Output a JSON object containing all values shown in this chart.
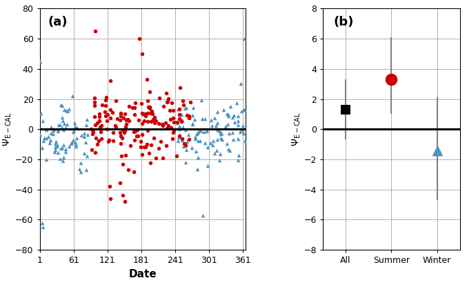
{
  "panel_a": {
    "title": "(a)",
    "xlabel": "Date",
    "ylim": [
      -80,
      80
    ],
    "yticks": [
      -80,
      -60,
      -40,
      -20,
      0,
      20,
      40,
      60,
      80
    ],
    "xlim": [
      1,
      366
    ],
    "xticks": [
      1,
      61,
      121,
      181,
      241,
      301,
      361
    ],
    "hline": 0,
    "red_seed": 10,
    "blue_seed": 7
  },
  "panel_b": {
    "title": "(b)",
    "ylim": [
      -8,
      8
    ],
    "yticks": [
      -8,
      -6,
      -4,
      -2,
      0,
      2,
      4,
      6,
      8
    ],
    "categories": [
      "All",
      "Summer",
      "Winter"
    ],
    "means": [
      1.3,
      3.3,
      -1.4
    ],
    "errors_upper": [
      3.3,
      6.1,
      2.1
    ],
    "errors_lower": [
      -0.7,
      1.0,
      -4.7
    ],
    "markers": [
      "s",
      "o",
      "^"
    ],
    "colors": [
      "#000000",
      "#cc0000",
      "#4d94c0"
    ],
    "marker_sizes": [
      110,
      160,
      130
    ],
    "hline": 0
  },
  "background_color": "#ffffff",
  "grid_color": "#b0b0b0",
  "red_dot_color": "#cc0000",
  "blue_tri_color": "#4d94c0"
}
